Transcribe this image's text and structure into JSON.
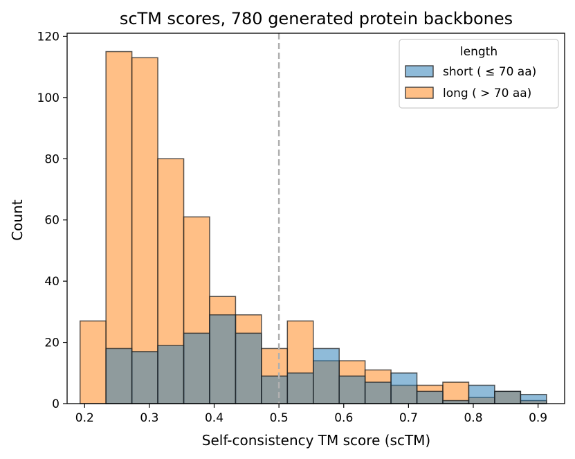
{
  "chart_data": {
    "type": "bar",
    "title": "scTM scores, 780 generated protein backbones",
    "xlabel": "Self-consistency TM score (scTM)",
    "ylabel": "Count",
    "xlim": [
      0.173,
      0.941
    ],
    "ylim": [
      0,
      121
    ],
    "xticks": [
      "0.2",
      "0.3",
      "0.4",
      "0.5",
      "0.6",
      "0.7",
      "0.8",
      "0.9"
    ],
    "xtick_values": [
      0.2,
      0.3,
      0.4,
      0.5,
      0.6,
      0.7,
      0.8,
      0.9
    ],
    "yticks": [
      "0",
      "20",
      "40",
      "60",
      "80",
      "100",
      "120"
    ],
    "ytick_values": [
      0,
      20,
      40,
      60,
      80,
      100,
      120
    ],
    "bin_edges": [
      0.193,
      0.233,
      0.273,
      0.313,
      0.353,
      0.393,
      0.433,
      0.473,
      0.513,
      0.553,
      0.593,
      0.633,
      0.673,
      0.713,
      0.753,
      0.793,
      0.833,
      0.873,
      0.913
    ],
    "threshold": 0.5,
    "legend": {
      "title": "length",
      "placement": "top-right",
      "entries": [
        "short ( ≤ 70 aa)",
        "long ( > 70 aa)"
      ]
    },
    "series": [
      {
        "name": "short ( ≤ 70 aa)",
        "color": "#1f77b4",
        "values": [
          0,
          18,
          17,
          19,
          23,
          29,
          23,
          9,
          10,
          18,
          9,
          7,
          10,
          4,
          1,
          6,
          4,
          3
        ]
      },
      {
        "name": "long ( > 70 aa)",
        "color": "#ff7f0e",
        "values": [
          27,
          115,
          113,
          80,
          61,
          35,
          29,
          18,
          27,
          14,
          14,
          11,
          6,
          6,
          7,
          2,
          4,
          1
        ]
      }
    ]
  }
}
